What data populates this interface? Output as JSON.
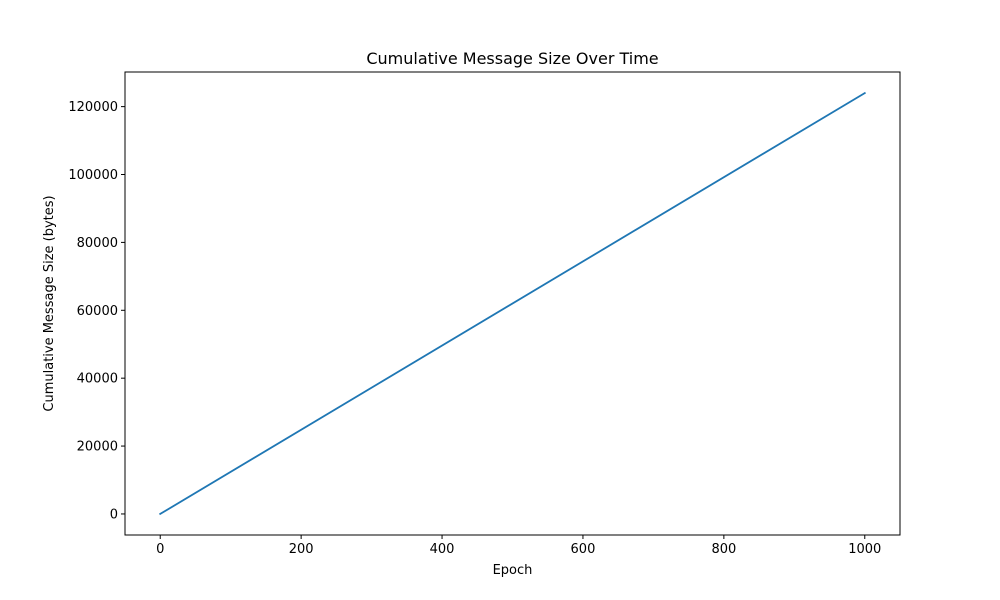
{
  "chart_data": {
    "type": "line",
    "title": "Cumulative Message Size Over Time",
    "xlabel": "Epoch",
    "ylabel": "Cumulative Message Size (bytes)",
    "xlim": [
      -50,
      1050
    ],
    "ylim": [
      -6200,
      130200
    ],
    "xticks": [
      0,
      200,
      400,
      600,
      800,
      1000
    ],
    "xtick_labels": [
      "0",
      "200",
      "400",
      "600",
      "800",
      "1000"
    ],
    "yticks": [
      0,
      20000,
      40000,
      60000,
      80000,
      100000,
      120000
    ],
    "ytick_labels": [
      "0",
      "20000",
      "40000",
      "60000",
      "80000",
      "100000",
      "120000"
    ],
    "grid": false,
    "series": [
      {
        "color": "#1f77b4",
        "x": [
          0,
          1000
        ],
        "y": [
          0,
          124000
        ]
      }
    ]
  }
}
